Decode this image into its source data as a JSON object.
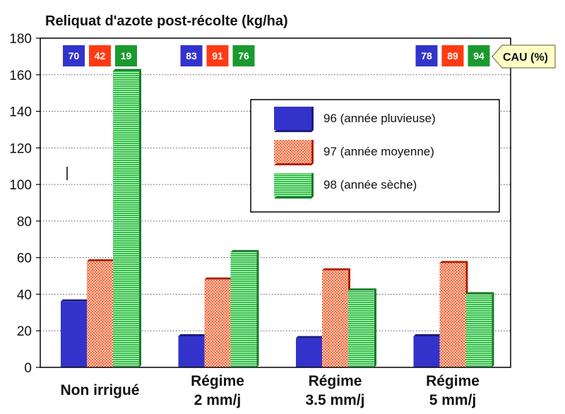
{
  "chart_data": {
    "type": "bar",
    "title": "Reliquat d'azote post-récolte (kg/ha)",
    "categories": [
      [
        "Non irrigué"
      ],
      [
        "Régime",
        "2 mm/j"
      ],
      [
        "Régime",
        "3.5 mm/j"
      ],
      [
        "Régime",
        "5 mm/j"
      ]
    ],
    "series": [
      {
        "name": "96 (année pluvieuse)",
        "values": [
          36,
          17,
          16,
          17
        ],
        "color": "#3333cc",
        "pattern": "solid"
      },
      {
        "name": "97 (année moyenne)",
        "values": [
          58,
          48,
          53,
          57
        ],
        "color": "#ff3b14",
        "pattern": "checker"
      },
      {
        "name": "98 (année sèche)",
        "values": [
          162,
          63,
          42,
          40
        ],
        "color": "#2fc045",
        "pattern": "stripes"
      }
    ],
    "ylim": [
      0,
      180
    ],
    "yticks": [
      0,
      20,
      40,
      60,
      80,
      100,
      120,
      140,
      160,
      180
    ],
    "grid": "horizontal-dotted",
    "legend": "upper-right-inside",
    "cau": {
      "label": "CAU (%)",
      "groups": [
        {
          "values": [
            "70",
            "42",
            "19"
          ]
        },
        {
          "values": [
            "83",
            "91",
            "76"
          ]
        },
        {
          "values": [
            null,
            null,
            null
          ]
        },
        {
          "values": [
            "78",
            "89",
            "94"
          ]
        }
      ]
    }
  }
}
